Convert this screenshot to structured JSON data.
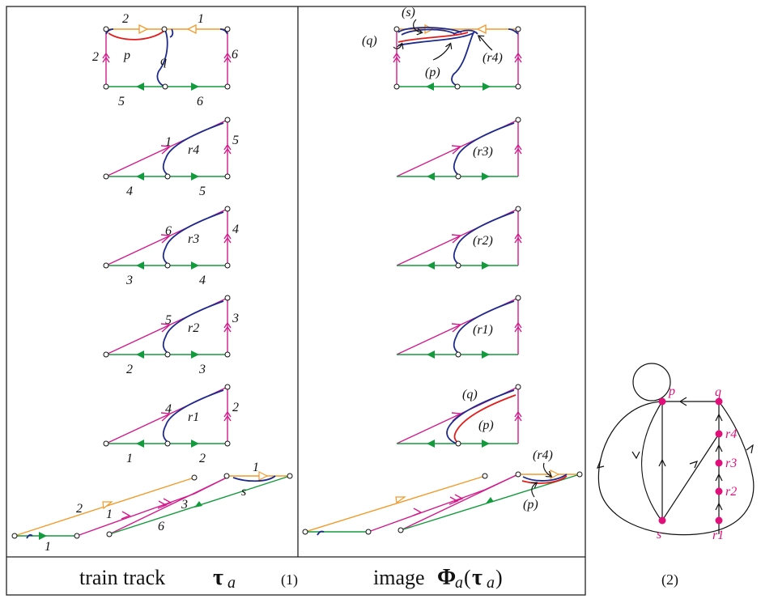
{
  "panel1": {
    "caption_text": "train track",
    "caption_symbol": "τ",
    "caption_sub": "a",
    "number": "(1)",
    "top_block": {
      "labels": [
        "2",
        "1",
        "2",
        "p",
        "q",
        "6",
        "5",
        "6"
      ]
    },
    "triangles": [
      {
        "top": "1",
        "right": "5",
        "curve": "r4",
        "bottom_left": "4",
        "bottom_right": "5"
      },
      {
        "top": "6",
        "right": "4",
        "curve": "r3",
        "bottom_left": "3",
        "bottom_right": "4"
      },
      {
        "top": "5",
        "right": "3",
        "curve": "r2",
        "bottom_left": "2",
        "bottom_right": "3"
      },
      {
        "top": "4",
        "right": "2",
        "curve": "r1",
        "bottom_left": "1",
        "bottom_right": "2"
      }
    ],
    "bottom_block": {
      "labels": [
        "2",
        "1",
        "1",
        "3",
        "6",
        "1",
        "s"
      ]
    }
  },
  "panel2": {
    "caption_text": "image",
    "caption_phi": "Φ",
    "caption_sub": "a",
    "caption_tau": "τ",
    "top_block": {
      "labels": [
        "(s)",
        "(q)",
        "(p)",
        "(r4)"
      ]
    },
    "triangles": [
      {
        "curve": "(r3)"
      },
      {
        "curve": "(r2)"
      },
      {
        "curve": "(r1)"
      },
      {
        "curve_top": "(q)",
        "curve_bottom": "(p)"
      }
    ],
    "bottom_block": {
      "labels": [
        "(r4)",
        "(p)"
      ]
    }
  },
  "graph": {
    "number": "(2)",
    "nodes": [
      "p",
      "q",
      "r4",
      "r3",
      "r2",
      "s",
      "r1"
    ]
  }
}
